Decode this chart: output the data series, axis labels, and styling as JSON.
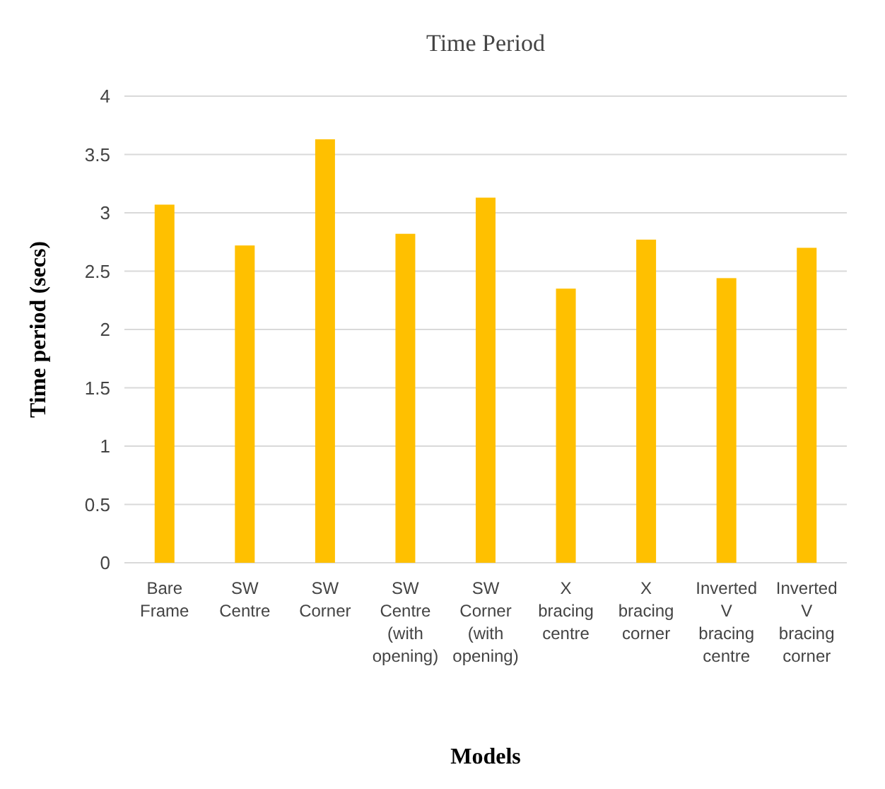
{
  "chart_data": {
    "type": "bar",
    "title": "Time Period",
    "xlabel": "Models",
    "ylabel": "Time period (secs)",
    "categories": [
      "Bare Frame",
      "SW Centre",
      "SW Corner",
      "SW Centre (with opening)",
      "SW Corner (with opening)",
      "X bracing centre",
      "X bracing corner",
      "Inverted V bracing centre",
      "Inverted V bracing corner"
    ],
    "values": [
      3.07,
      2.72,
      3.63,
      2.82,
      3.13,
      2.35,
      2.77,
      2.44,
      2.7
    ],
    "color": "#ffc000",
    "ylim": [
      0,
      4
    ],
    "yticks": [
      0,
      0.5,
      1,
      1.5,
      2,
      2.5,
      3,
      3.5,
      4
    ],
    "grid": "y"
  }
}
